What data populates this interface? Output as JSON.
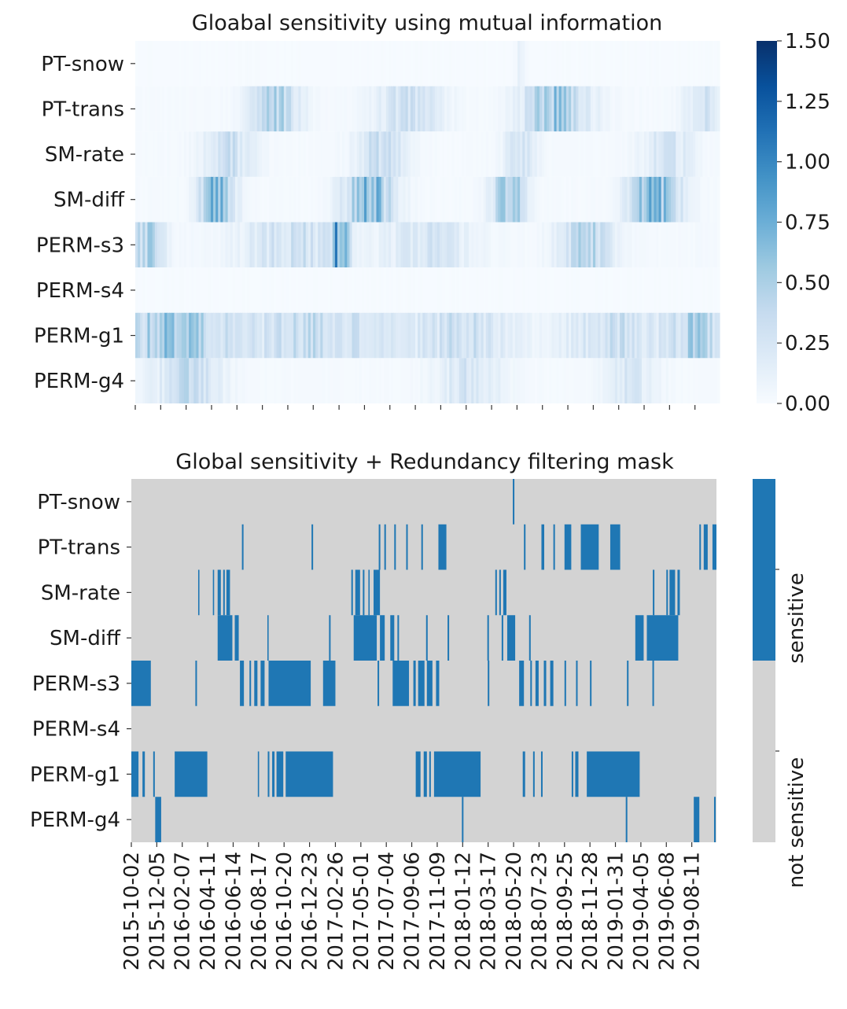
{
  "chart_data": [
    {
      "type": "heatmap",
      "title": "Gloabal sensitivity using mutual information",
      "rows": [
        "PT-snow",
        "PT-trans",
        "SM-rate",
        "SM-diff",
        "PERM-s3",
        "PERM-s4",
        "PERM-g1",
        "PERM-g4"
      ],
      "x_tick_labels": [
        "",
        "",
        "",
        "",
        "",
        "",
        "",
        "",
        "",
        "",
        "",
        "",
        "",
        "",
        "",
        "",
        "",
        "",
        "",
        "",
        "",
        "",
        "",
        ""
      ],
      "colorbar": {
        "ticks": [
          "0.00",
          "0.25",
          "0.50",
          "0.75",
          "1.00",
          "1.25",
          "1.50"
        ],
        "range": [
          0,
          1.5
        ],
        "colormap": [
          "#f7fbff",
          "#deebf7",
          "#c6dbef",
          "#9ecae1",
          "#6baed6",
          "#4292c6",
          "#2171b5",
          "#08519c",
          "#08306b"
        ]
      },
      "n_columns": 240,
      "row_profiles": [
        {
          "row": "PT-snow",
          "base": 0.01,
          "peaks": [
            {
              "center": 0.66,
              "width": 0.006,
              "value": 0.12
            }
          ]
        },
        {
          "row": "PT-trans",
          "base": 0.02,
          "peaks": [
            {
              "center": 0.24,
              "width": 0.03,
              "value": 0.45
            },
            {
              "center": 0.47,
              "width": 0.04,
              "value": 0.3
            },
            {
              "center": 0.72,
              "width": 0.04,
              "value": 0.55
            },
            {
              "center": 0.97,
              "width": 0.02,
              "value": 0.3
            }
          ]
        },
        {
          "row": "SM-rate",
          "base": 0.02,
          "peaks": [
            {
              "center": 0.16,
              "width": 0.03,
              "value": 0.3
            },
            {
              "center": 0.42,
              "width": 0.03,
              "value": 0.35
            },
            {
              "center": 0.66,
              "width": 0.02,
              "value": 0.25
            },
            {
              "center": 0.91,
              "width": 0.03,
              "value": 0.25
            }
          ]
        },
        {
          "row": "SM-diff",
          "base": 0.02,
          "peaks": [
            {
              "center": 0.14,
              "width": 0.02,
              "value": 0.8
            },
            {
              "center": 0.4,
              "width": 0.03,
              "value": 0.7
            },
            {
              "center": 0.64,
              "width": 0.02,
              "value": 0.6
            },
            {
              "center": 0.89,
              "width": 0.03,
              "value": 0.7
            }
          ]
        },
        {
          "row": "PERM-s3",
          "base": 0.03,
          "peaks": [
            {
              "center": 0.02,
              "width": 0.02,
              "value": 0.45
            },
            {
              "center": 0.27,
              "width": 0.06,
              "value": 0.3
            },
            {
              "center": 0.35,
              "width": 0.01,
              "value": 0.8
            },
            {
              "center": 0.5,
              "width": 0.05,
              "value": 0.25
            },
            {
              "center": 0.77,
              "width": 0.03,
              "value": 0.45
            }
          ]
        },
        {
          "row": "PERM-s4",
          "base": 0.01,
          "peaks": []
        },
        {
          "row": "PERM-g1",
          "base": 0.04,
          "peaks": [
            {
              "center": 0.07,
              "width": 0.06,
              "value": 0.6
            },
            {
              "center": 0.31,
              "width": 0.09,
              "value": 0.35
            },
            {
              "center": 0.56,
              "width": 0.06,
              "value": 0.3
            },
            {
              "center": 0.82,
              "width": 0.06,
              "value": 0.3
            },
            {
              "center": 0.96,
              "width": 0.03,
              "value": 0.45
            }
          ]
        },
        {
          "row": "PERM-g4",
          "base": 0.02,
          "peaks": [
            {
              "center": 0.09,
              "width": 0.04,
              "value": 0.35
            },
            {
              "center": 0.57,
              "width": 0.04,
              "value": 0.25
            },
            {
              "center": 0.85,
              "width": 0.03,
              "value": 0.22
            }
          ]
        }
      ]
    },
    {
      "type": "heatmap",
      "title": "Global sensitivity + Redundancy filtering mask",
      "rows": [
        "PT-snow",
        "PT-trans",
        "SM-rate",
        "SM-diff",
        "PERM-s3",
        "PERM-s4",
        "PERM-g1",
        "PERM-g4"
      ],
      "x_tick_labels": [
        "2015-10-02",
        "2015-12-05",
        "2016-02-07",
        "2016-04-11",
        "2016-06-14",
        "2016-08-17",
        "2016-10-20",
        "2016-12-23",
        "2017-02-26",
        "2017-05-01",
        "2017-07-04",
        "2017-09-06",
        "2017-11-09",
        "2018-01-12",
        "2018-03-17",
        "2018-05-20",
        "2018-07-23",
        "2018-09-25",
        "2018-11-28",
        "2019-01-31",
        "2019-04-05",
        "2019-06-08",
        "2019-08-11"
      ],
      "x_domain": [
        "2015-10-02",
        "2019-10-12"
      ],
      "colors": {
        "sensitive": "#1f77b4",
        "not_sensitive": "#d3d3d3"
      },
      "colorbar_labels": [
        "not sensitive",
        "sensitive"
      ],
      "sensitive_intervals": {
        "PT-snow": [
          [
            "2018-05-18",
            "2018-05-22"
          ]
        ],
        "PT-trans": [
          [
            "2016-07-06",
            "2016-07-10"
          ],
          [
            "2016-12-28",
            "2017-01-01"
          ],
          [
            "2017-06-15",
            "2017-06-19"
          ],
          [
            "2017-06-29",
            "2017-07-03"
          ],
          [
            "2017-07-24",
            "2017-07-28"
          ],
          [
            "2017-08-23",
            "2017-08-27"
          ],
          [
            "2017-09-30",
            "2017-10-04"
          ],
          [
            "2017-11-12",
            "2017-12-02"
          ],
          [
            "2018-06-15",
            "2018-06-19"
          ],
          [
            "2018-07-29",
            "2018-08-05"
          ],
          [
            "2018-08-28",
            "2018-09-01"
          ],
          [
            "2018-09-25",
            "2018-10-12"
          ],
          [
            "2018-11-05",
            "2018-12-20"
          ],
          [
            "2019-01-18",
            "2019-02-12"
          ],
          [
            "2019-08-30",
            "2019-09-03"
          ],
          [
            "2019-09-10",
            "2019-09-20"
          ],
          [
            "2019-10-02",
            "2019-10-12"
          ]
        ],
        "SM-rate": [
          [
            "2016-03-18",
            "2016-03-20"
          ],
          [
            "2016-04-24",
            "2016-04-26"
          ],
          [
            "2016-05-06",
            "2016-05-14"
          ],
          [
            "2016-05-20",
            "2016-05-24"
          ],
          [
            "2016-05-28",
            "2016-06-06"
          ],
          [
            "2017-04-07",
            "2017-04-11"
          ],
          [
            "2017-04-17",
            "2017-04-29"
          ],
          [
            "2017-05-06",
            "2017-05-10"
          ],
          [
            "2017-05-20",
            "2017-05-22"
          ],
          [
            "2017-06-02",
            "2017-06-18"
          ],
          [
            "2018-04-04",
            "2018-04-08"
          ],
          [
            "2018-04-14",
            "2018-04-18"
          ],
          [
            "2018-04-24",
            "2018-05-02"
          ],
          [
            "2019-05-05",
            "2019-05-09"
          ],
          [
            "2019-06-08",
            "2019-06-12"
          ],
          [
            "2019-06-16",
            "2019-06-30"
          ],
          [
            "2019-07-06",
            "2019-07-12"
          ]
        ],
        "SM-diff": [
          [
            "2016-05-06",
            "2016-06-12"
          ],
          [
            "2016-06-18",
            "2016-06-28"
          ],
          [
            "2016-09-08",
            "2016-09-10"
          ],
          [
            "2017-02-10",
            "2017-02-14"
          ],
          [
            "2017-04-13",
            "2017-06-10"
          ],
          [
            "2017-06-18",
            "2017-06-30"
          ],
          [
            "2017-07-14",
            "2017-07-24"
          ],
          [
            "2017-08-01",
            "2017-08-05"
          ],
          [
            "2017-10-12",
            "2017-10-16"
          ],
          [
            "2017-12-05",
            "2017-12-09"
          ],
          [
            "2018-03-15",
            "2018-03-19"
          ],
          [
            "2018-04-20",
            "2018-04-24"
          ],
          [
            "2018-05-04",
            "2018-05-24"
          ],
          [
            "2018-06-28",
            "2018-07-02"
          ],
          [
            "2019-03-22",
            "2019-04-12"
          ],
          [
            "2019-04-20",
            "2019-07-08"
          ]
        ],
        "PERM-s3": [
          [
            "2015-10-02",
            "2015-11-20"
          ],
          [
            "2016-03-11",
            "2016-03-15"
          ],
          [
            "2016-07-01",
            "2016-07-11"
          ],
          [
            "2016-07-25",
            "2016-07-29"
          ],
          [
            "2016-08-06",
            "2016-08-14"
          ],
          [
            "2016-08-22",
            "2016-09-01"
          ],
          [
            "2016-09-11",
            "2016-12-26"
          ],
          [
            "2017-01-26",
            "2017-02-26"
          ],
          [
            "2017-06-12",
            "2017-06-16"
          ],
          [
            "2017-07-20",
            "2017-08-30"
          ],
          [
            "2017-09-10",
            "2017-09-16"
          ],
          [
            "2017-09-22",
            "2017-10-08"
          ],
          [
            "2017-10-14",
            "2017-10-28"
          ],
          [
            "2017-11-06",
            "2017-11-14"
          ],
          [
            "2018-03-16",
            "2018-03-20"
          ],
          [
            "2018-06-03",
            "2018-06-15"
          ],
          [
            "2018-07-01",
            "2018-07-05"
          ],
          [
            "2018-07-14",
            "2018-07-22"
          ],
          [
            "2018-08-04",
            "2018-08-10"
          ],
          [
            "2018-08-20",
            "2018-08-28"
          ],
          [
            "2018-09-25",
            "2018-09-29"
          ],
          [
            "2018-10-24",
            "2018-10-28"
          ],
          [
            "2018-11-28",
            "2018-12-02"
          ],
          [
            "2019-03-01",
            "2019-03-05"
          ],
          [
            "2019-05-04",
            "2019-05-08"
          ]
        ],
        "PERM-s4": [],
        "PERM-g1": [
          [
            "2015-10-02",
            "2015-10-20"
          ],
          [
            "2015-10-30",
            "2015-11-05"
          ],
          [
            "2015-11-26",
            "2015-11-30"
          ],
          [
            "2016-01-19",
            "2016-04-10"
          ],
          [
            "2016-08-15",
            "2016-08-18"
          ],
          [
            "2016-09-09",
            "2016-09-13"
          ],
          [
            "2016-09-20",
            "2016-09-26"
          ],
          [
            "2016-10-01",
            "2016-10-18"
          ],
          [
            "2016-10-24",
            "2017-02-20"
          ],
          [
            "2017-09-16",
            "2017-09-28"
          ],
          [
            "2017-10-06",
            "2017-10-14"
          ],
          [
            "2017-10-20",
            "2017-10-24"
          ],
          [
            "2017-11-01",
            "2018-02-26"
          ],
          [
            "2018-06-12",
            "2018-06-18"
          ],
          [
            "2018-07-08",
            "2018-07-12"
          ],
          [
            "2018-07-28",
            "2018-08-01"
          ],
          [
            "2018-10-13",
            "2018-10-17"
          ],
          [
            "2018-10-22",
            "2018-10-30"
          ],
          [
            "2018-11-20",
            "2019-04-02"
          ]
        ],
        "PERM-g4": [
          [
            "2015-12-01",
            "2015-12-16"
          ],
          [
            "2018-01-10",
            "2018-01-14"
          ],
          [
            "2019-02-26",
            "2019-03-02"
          ],
          [
            "2019-08-16",
            "2019-08-30"
          ],
          [
            "2019-10-06",
            "2019-10-10"
          ]
        ]
      }
    }
  ]
}
